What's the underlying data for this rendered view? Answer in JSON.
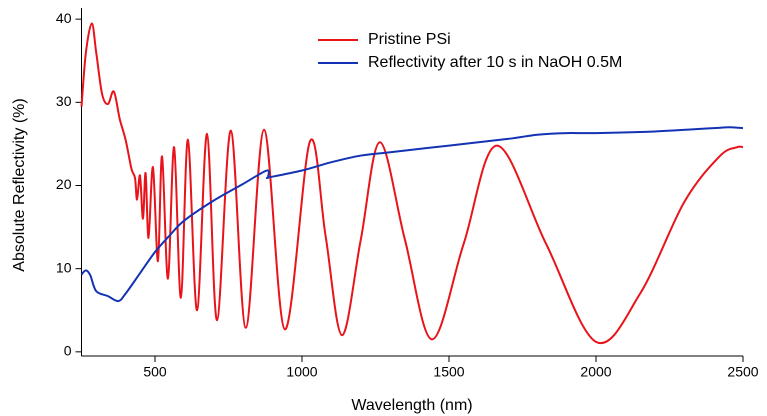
{
  "chart_data": {
    "type": "line",
    "xlabel": "Wavelength (nm)",
    "ylabel": "Absolute Reflectivity (%)",
    "xlim": [
      250,
      2500
    ],
    "xticks": [
      500,
      1000,
      1500,
      2000,
      2500
    ],
    "ylim": [
      -0.5,
      40.5
    ],
    "yticks": [
      0,
      10,
      20,
      30,
      40
    ],
    "legend": "top",
    "series": [
      {
        "name": "Pristine PSi",
        "color": "#e8141a",
        "x": [
          250,
          265,
          285,
          300,
          320,
          340,
          360,
          380,
          400,
          420,
          432,
          439,
          449,
          459,
          468,
          478,
          493,
          510,
          524,
          544,
          565,
          588,
          612,
          643,
          677,
          711,
          758,
          809,
          871,
          942,
          1027,
          1080,
          1136,
          1200,
          1265,
          1350,
          1442,
          1550,
          1663,
          1830,
          2000,
          2150,
          2300,
          2420,
          2480,
          2500
        ],
        "values": [
          29.5,
          36,
          39.5,
          36,
          31,
          29.8,
          31.3,
          28,
          25.5,
          22,
          20.9,
          18.3,
          21.2,
          16,
          21.5,
          13.7,
          22.2,
          10.9,
          23.5,
          8.8,
          24.6,
          6.5,
          25.5,
          5.0,
          26.2,
          3.8,
          26.6,
          2.9,
          26.7,
          2.7,
          25.3,
          14,
          2.0,
          13.5,
          25.2,
          13.5,
          1.5,
          13,
          24.8,
          13,
          1.2,
          7,
          18,
          23.5,
          24.6,
          24.6
        ]
      },
      {
        "name": "Reflectivity after 10 s in NaOH 0.5M",
        "color": "#1432b4",
        "x": [
          250,
          265,
          280,
          300,
          340,
          375,
          400,
          450,
          500,
          550,
          600,
          700,
          800,
          880,
          885,
          890,
          1000,
          1100,
          1200,
          1300,
          1500,
          1700,
          1800,
          1900,
          2000,
          2200,
          2400,
          2450,
          2500
        ],
        "values": [
          9.3,
          9.8,
          9.2,
          7.3,
          6.7,
          6.1,
          7,
          9.5,
          12,
          14,
          15.8,
          18.2,
          20.2,
          21.8,
          21,
          21,
          21.8,
          22.8,
          23.6,
          24,
          24.8,
          25.6,
          26.1,
          26.3,
          26.3,
          26.5,
          26.9,
          27,
          26.9
        ]
      }
    ]
  }
}
